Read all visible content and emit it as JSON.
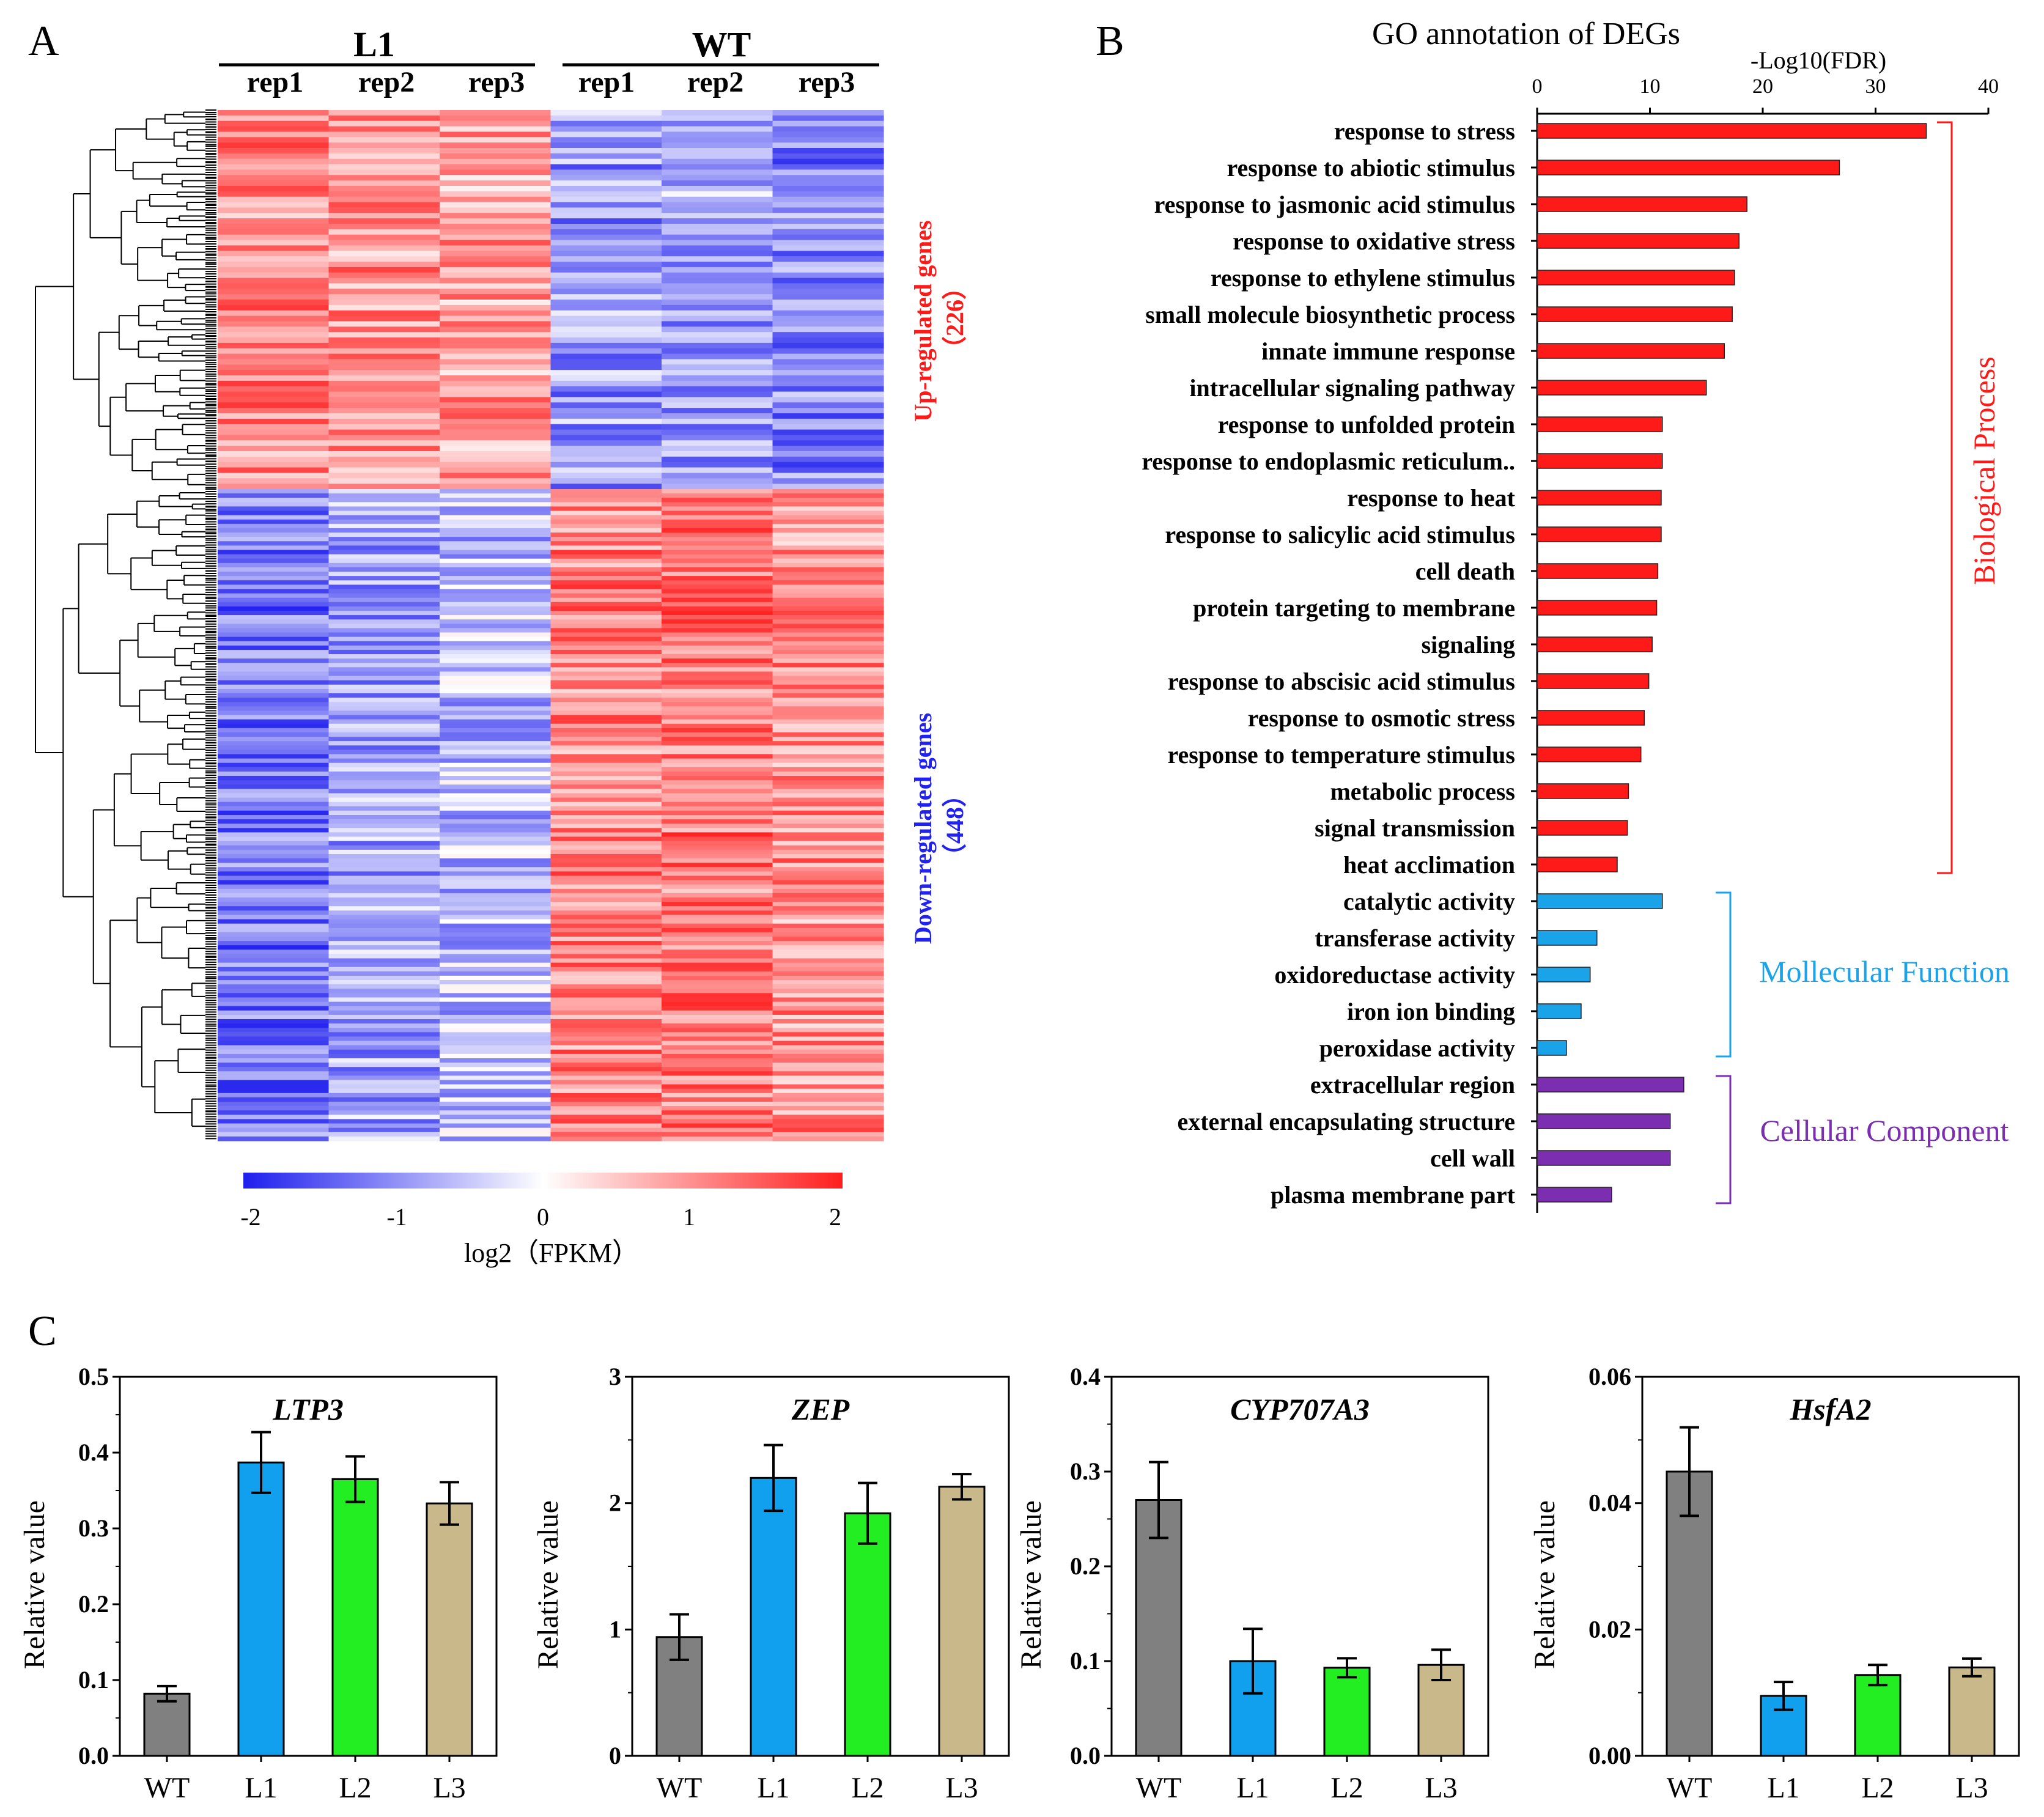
{
  "panel_labels": {
    "a": "A",
    "b": "B",
    "c": "C"
  },
  "colors": {
    "up": "#ff1a1a",
    "down": "#2222ee",
    "bp": "#ff1a1a",
    "mf": "#1aa3e8",
    "cc": "#7b2fb0",
    "wt_bar": "#808080",
    "l1_bar": "#10a0ee",
    "l2_bar": "#22ee22",
    "l3_bar": "#c8b88a",
    "heat_low": "#1e1eee",
    "heat_mid": "#ffffff",
    "heat_high": "#ff1e1e"
  },
  "heatmap": {
    "groups": [
      "L1",
      "WT"
    ],
    "columns": [
      "rep1",
      "rep2",
      "rep3",
      "rep1",
      "rep2",
      "rep3"
    ],
    "up_label": "Up-regulated  genes",
    "up_count": "（226）",
    "down_label": "Down-regulated  genes",
    "down_count": "（448）",
    "colorbar_ticks": [
      "-2",
      "-1",
      "0",
      "1",
      "2"
    ],
    "colorbar_range": [
      -2,
      2
    ],
    "colorbar_label": "log2（FPKM）"
  },
  "chart_data": [
    {
      "type": "bar",
      "orientation": "horizontal",
      "title": "GO annotation  of DEGs",
      "xlabel": "-Log10(FDR)",
      "xlim": [
        0,
        40
      ],
      "xticks": [
        "0",
        "10",
        "20",
        "30",
        "40"
      ],
      "groups": [
        {
          "name": "Biological   Process",
          "key": "bp",
          "count": 21
        },
        {
          "name": "Mollecular   Function",
          "key": "mf",
          "count": 5
        },
        {
          "name": "Cellular   Component",
          "key": "cc",
          "count": 4
        }
      ],
      "categories": [
        "response to stress",
        "response to abiotic stimulus",
        "response to jasmonic acid stimulus",
        "response to oxidative stress",
        "response to ethylene stimulus",
        "small molecule biosynthetic process",
        "innate immune response",
        "intracellular signaling pathway",
        "response to unfolded protein",
        "response to endoplasmic reticulum..",
        "response to heat",
        "response to salicylic acid stimulus",
        "cell death",
        "protein targeting to membrane",
        "signaling",
        "response to abscisic acid stimulus",
        "response to osmotic stress",
        "response to temperature stimulus",
        "metabolic process",
        "signal transmission",
        "heat acclimation",
        "catalytic activity",
        "transferase activity",
        "oxidoreductase activity",
        "iron ion binding",
        "peroxidase activity",
        "extracellular region",
        "external encapsulating structure",
        "cell wall",
        "plasma membrane part"
      ],
      "values": [
        34.5,
        26.8,
        18.6,
        17.9,
        17.5,
        17.3,
        16.6,
        15.0,
        11.1,
        11.1,
        11.0,
        11.0,
        10.7,
        10.6,
        10.2,
        9.9,
        9.5,
        9.2,
        8.1,
        8.0,
        7.1,
        11.1,
        5.3,
        4.7,
        3.9,
        2.6,
        13.0,
        11.8,
        11.8,
        6.6
      ]
    },
    {
      "type": "bar",
      "title": "LTP3",
      "ylabel": "Relative value",
      "categories": [
        "WT",
        "L1",
        "L2",
        "L3"
      ],
      "values": [
        0.082,
        0.387,
        0.365,
        0.333
      ],
      "errors": [
        0.01,
        0.04,
        0.03,
        0.028
      ],
      "ylim": [
        0,
        0.5
      ],
      "yticks": [
        "0.0",
        "0.1",
        "0.2",
        "0.3",
        "0.4",
        "0.5"
      ]
    },
    {
      "type": "bar",
      "title": "ZEP",
      "ylabel": "Relative value",
      "categories": [
        "WT",
        "L1",
        "L2",
        "L3"
      ],
      "values": [
        0.94,
        2.2,
        1.92,
        2.13
      ],
      "errors": [
        0.18,
        0.26,
        0.24,
        0.1
      ],
      "ylim": [
        0,
        3
      ],
      "yticks": [
        "0",
        "1",
        "2",
        "3"
      ]
    },
    {
      "type": "bar",
      "title": "CYP707A3",
      "ylabel": "Relative value",
      "categories": [
        "WT",
        "L1",
        "L2",
        "L3"
      ],
      "values": [
        0.27,
        0.1,
        0.093,
        0.096
      ],
      "errors": [
        0.04,
        0.034,
        0.01,
        0.016
      ],
      "ylim": [
        0,
        0.4
      ],
      "yticks": [
        "0.0",
        "0.1",
        "0.2",
        "0.3",
        "0.4"
      ]
    },
    {
      "type": "bar",
      "title": "HsfA2",
      "ylabel": "Relative value",
      "categories": [
        "WT",
        "L1",
        "L2",
        "L3"
      ],
      "values": [
        0.045,
        0.0095,
        0.0128,
        0.014
      ],
      "errors": [
        0.007,
        0.0022,
        0.0016,
        0.0014
      ],
      "ylim": [
        0,
        0.06
      ],
      "yticks": [
        "0.00",
        "0.02",
        "0.04",
        "0.06"
      ]
    }
  ]
}
